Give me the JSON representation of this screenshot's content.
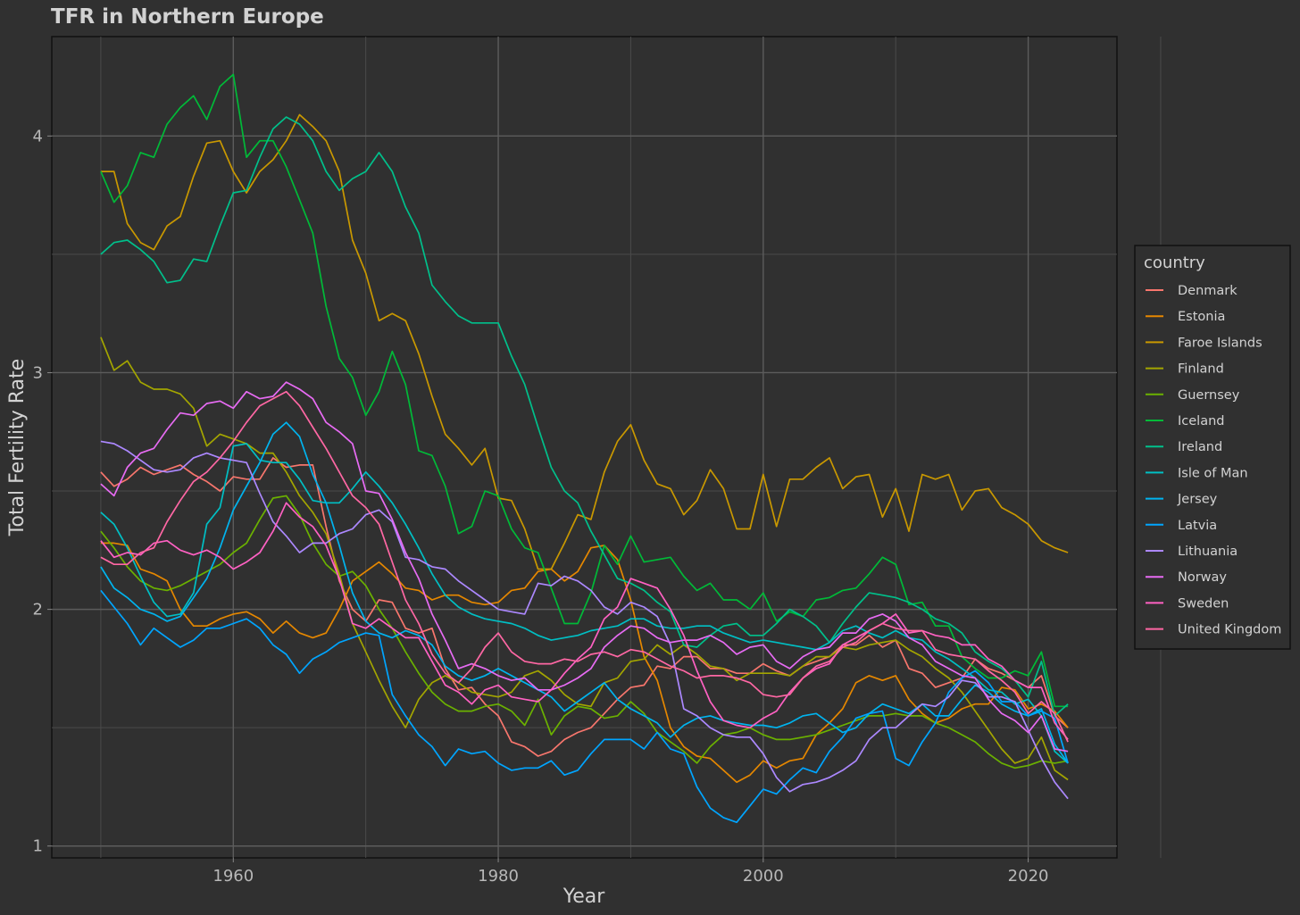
{
  "chart_data": {
    "type": "line",
    "title": "TFR in Northern Europe",
    "xlabel": "Year",
    "ylabel": "Total Fertility Rate",
    "legend_title": "country",
    "legend_position": "right",
    "grid": true,
    "xlim": [
      1946.3,
      2026.7
    ],
    "ylim": [
      0.95,
      4.42
    ],
    "x_ticks": [
      1960,
      1980,
      2000,
      2020
    ],
    "y_ticks": [
      1,
      2,
      3,
      4
    ],
    "x_start": 1950,
    "series": [
      {
        "name": "Denmark",
        "color": "#F8766D",
        "values": [
          2.58,
          2.52,
          2.55,
          2.6,
          2.57,
          2.59,
          2.61,
          2.57,
          2.54,
          2.5,
          2.56,
          2.55,
          2.55,
          2.64,
          2.6,
          2.61,
          2.61,
          2.35,
          2.12,
          2.0,
          1.95,
          2.04,
          2.03,
          1.92,
          1.9,
          1.92,
          1.75,
          1.66,
          1.67,
          1.6,
          1.55,
          1.44,
          1.42,
          1.38,
          1.4,
          1.45,
          1.48,
          1.5,
          1.56,
          1.62,
          1.67,
          1.68,
          1.76,
          1.75,
          1.8,
          1.8,
          1.75,
          1.75,
          1.73,
          1.73,
          1.77,
          1.74,
          1.72,
          1.76,
          1.78,
          1.8,
          1.85,
          1.85,
          1.89,
          1.84,
          1.87,
          1.75,
          1.73,
          1.67,
          1.69,
          1.71,
          1.79,
          1.75,
          1.73,
          1.7,
          1.67,
          1.72,
          1.55,
          1.5
        ]
      },
      {
        "name": "Estonia",
        "color": "#E58700",
        "values": [
          2.28,
          2.28,
          2.27,
          2.17,
          2.15,
          2.12,
          2.0,
          1.93,
          1.93,
          1.96,
          1.98,
          1.99,
          1.96,
          1.9,
          1.95,
          1.9,
          1.88,
          1.9,
          2.0,
          2.12,
          2.16,
          2.2,
          2.15,
          2.09,
          2.08,
          2.04,
          2.06,
          2.06,
          2.03,
          2.02,
          2.03,
          2.08,
          2.09,
          2.16,
          2.17,
          2.12,
          2.16,
          2.26,
          2.27,
          2.21,
          2.04,
          1.8,
          1.7,
          1.5,
          1.42,
          1.38,
          1.37,
          1.32,
          1.27,
          1.3,
          1.36,
          1.33,
          1.36,
          1.37,
          1.47,
          1.52,
          1.58,
          1.69,
          1.72,
          1.7,
          1.72,
          1.62,
          1.56,
          1.52,
          1.54,
          1.58,
          1.6,
          1.6,
          1.67,
          1.66,
          1.58,
          1.6,
          1.57,
          1.5
        ]
      },
      {
        "name": "Faroe Islands",
        "color": "#C99800",
        "values": [
          3.85,
          3.85,
          3.63,
          3.55,
          3.52,
          3.62,
          3.66,
          3.83,
          3.97,
          3.98,
          3.85,
          3.76,
          3.85,
          3.9,
          3.98,
          4.09,
          4.04,
          3.98,
          3.85,
          3.56,
          3.42,
          3.22,
          3.25,
          3.22,
          3.08,
          2.9,
          2.74,
          2.68,
          2.61,
          2.68,
          2.47,
          2.46,
          2.34,
          2.17,
          2.17,
          2.28,
          2.4,
          2.38,
          2.58,
          2.71,
          2.78,
          2.63,
          2.53,
          2.51,
          2.4,
          2.46,
          2.59,
          2.51,
          2.34,
          2.34,
          2.57,
          2.35,
          2.55,
          2.55,
          2.6,
          2.64,
          2.51,
          2.56,
          2.57,
          2.39,
          2.51,
          2.33,
          2.57,
          2.55,
          2.57,
          2.42,
          2.5,
          2.51,
          2.43,
          2.4,
          2.36,
          2.29,
          2.26,
          2.24
        ]
      },
      {
        "name": "Finland",
        "color": "#A3A500",
        "values": [
          3.15,
          3.01,
          3.05,
          2.96,
          2.93,
          2.93,
          2.91,
          2.85,
          2.69,
          2.74,
          2.72,
          2.7,
          2.66,
          2.66,
          2.58,
          2.48,
          2.41,
          2.32,
          2.15,
          1.94,
          1.82,
          1.7,
          1.59,
          1.5,
          1.62,
          1.69,
          1.72,
          1.69,
          1.65,
          1.64,
          1.63,
          1.65,
          1.72,
          1.74,
          1.7,
          1.64,
          1.6,
          1.59,
          1.69,
          1.71,
          1.78,
          1.79,
          1.85,
          1.81,
          1.85,
          1.81,
          1.76,
          1.75,
          1.7,
          1.73,
          1.73,
          1.73,
          1.72,
          1.76,
          1.8,
          1.8,
          1.84,
          1.83,
          1.85,
          1.86,
          1.87,
          1.83,
          1.8,
          1.75,
          1.71,
          1.65,
          1.57,
          1.49,
          1.41,
          1.35,
          1.37,
          1.46,
          1.32,
          1.28
        ]
      },
      {
        "name": "Guernsey",
        "color": "#6BB100",
        "values": [
          2.33,
          2.26,
          2.18,
          2.12,
          2.09,
          2.08,
          2.1,
          2.13,
          2.16,
          2.19,
          2.24,
          2.28,
          2.38,
          2.47,
          2.48,
          2.4,
          2.28,
          2.19,
          2.14,
          2.16,
          2.1,
          2.0,
          1.92,
          1.82,
          1.73,
          1.65,
          1.6,
          1.57,
          1.57,
          1.59,
          1.6,
          1.57,
          1.51,
          1.62,
          1.47,
          1.55,
          1.59,
          1.58,
          1.54,
          1.55,
          1.61,
          1.56,
          1.48,
          1.44,
          1.4,
          1.35,
          1.42,
          1.47,
          1.48,
          1.5,
          1.47,
          1.45,
          1.45,
          1.46,
          1.47,
          1.49,
          1.51,
          1.53,
          1.55,
          1.55,
          1.56,
          1.55,
          1.55,
          1.52,
          1.5,
          1.47,
          1.44,
          1.39,
          1.35,
          1.33,
          1.34,
          1.36,
          1.35,
          1.36
        ]
      },
      {
        "name": "Iceland",
        "color": "#00BA38",
        "values": [
          3.85,
          3.72,
          3.79,
          3.93,
          3.91,
          4.05,
          4.12,
          4.17,
          4.07,
          4.21,
          4.26,
          3.91,
          3.98,
          3.98,
          3.87,
          3.73,
          3.59,
          3.28,
          3.06,
          2.98,
          2.82,
          2.92,
          3.09,
          2.95,
          2.67,
          2.65,
          2.52,
          2.32,
          2.35,
          2.5,
          2.48,
          2.34,
          2.26,
          2.24,
          2.09,
          1.94,
          1.94,
          2.07,
          2.27,
          2.19,
          2.31,
          2.2,
          2.21,
          2.22,
          2.14,
          2.08,
          2.11,
          2.04,
          2.04,
          2.0,
          2.07,
          1.95,
          1.99,
          1.97,
          2.04,
          2.05,
          2.08,
          2.09,
          2.15,
          2.22,
          2.19,
          2.02,
          2.03,
          1.93,
          1.93,
          1.8,
          1.75,
          1.71,
          1.71,
          1.74,
          1.72,
          1.82,
          1.59,
          1.59
        ]
      },
      {
        "name": "Ireland",
        "color": "#00C08B",
        "values": [
          3.5,
          3.55,
          3.56,
          3.52,
          3.47,
          3.38,
          3.39,
          3.48,
          3.47,
          3.62,
          3.76,
          3.77,
          3.91,
          4.03,
          4.08,
          4.05,
          3.98,
          3.85,
          3.77,
          3.82,
          3.85,
          3.93,
          3.85,
          3.7,
          3.59,
          3.37,
          3.3,
          3.24,
          3.21,
          3.21,
          3.21,
          3.07,
          2.95,
          2.77,
          2.6,
          2.5,
          2.45,
          2.33,
          2.23,
          2.13,
          2.11,
          2.08,
          2.03,
          1.99,
          1.85,
          1.84,
          1.89,
          1.93,
          1.94,
          1.89,
          1.89,
          1.94,
          2.0,
          1.97,
          1.93,
          1.86,
          1.94,
          2.01,
          2.07,
          2.06,
          2.05,
          2.03,
          2.0,
          1.96,
          1.94,
          1.9,
          1.82,
          1.78,
          1.75,
          1.7,
          1.63,
          1.78,
          1.55,
          1.6
        ]
      },
      {
        "name": "Isle of Man",
        "color": "#00BFC4",
        "values": [
          2.41,
          2.36,
          2.26,
          2.14,
          2.03,
          1.97,
          1.98,
          2.07,
          2.36,
          2.43,
          2.69,
          2.7,
          2.63,
          2.62,
          2.62,
          2.55,
          2.46,
          2.45,
          2.45,
          2.51,
          2.58,
          2.52,
          2.45,
          2.36,
          2.26,
          2.15,
          2.06,
          2.01,
          1.98,
          1.96,
          1.95,
          1.94,
          1.92,
          1.89,
          1.87,
          1.88,
          1.89,
          1.91,
          1.92,
          1.93,
          1.96,
          1.96,
          1.93,
          1.92,
          1.92,
          1.93,
          1.93,
          1.9,
          1.88,
          1.86,
          1.87,
          1.86,
          1.85,
          1.84,
          1.83,
          1.86,
          1.91,
          1.93,
          1.9,
          1.88,
          1.91,
          1.88,
          1.87,
          1.82,
          1.79,
          1.75,
          1.71,
          1.66,
          1.65,
          1.6,
          1.62,
          1.55,
          1.4,
          1.35
        ]
      },
      {
        "name": "Jersey",
        "color": "#00B4EF",
        "values": [
          2.18,
          2.09,
          2.05,
          2.0,
          1.98,
          1.95,
          1.97,
          2.05,
          2.13,
          2.26,
          2.42,
          2.52,
          2.62,
          2.74,
          2.79,
          2.73,
          2.57,
          2.45,
          2.27,
          2.07,
          1.95,
          1.9,
          1.88,
          1.91,
          1.89,
          1.85,
          1.76,
          1.72,
          1.7,
          1.72,
          1.75,
          1.72,
          1.69,
          1.66,
          1.63,
          1.57,
          1.61,
          1.65,
          1.69,
          1.62,
          1.58,
          1.55,
          1.52,
          1.46,
          1.51,
          1.54,
          1.55,
          1.53,
          1.52,
          1.51,
          1.51,
          1.5,
          1.52,
          1.55,
          1.56,
          1.52,
          1.48,
          1.5,
          1.56,
          1.6,
          1.58,
          1.56,
          1.6,
          1.55,
          1.55,
          1.62,
          1.68,
          1.65,
          1.6,
          1.57,
          1.55,
          1.58,
          1.43,
          1.35
        ]
      },
      {
        "name": "Latvia",
        "color": "#00A5FF",
        "values": [
          2.08,
          2.01,
          1.94,
          1.85,
          1.92,
          1.88,
          1.84,
          1.87,
          1.92,
          1.92,
          1.94,
          1.96,
          1.92,
          1.85,
          1.81,
          1.73,
          1.79,
          1.82,
          1.86,
          1.88,
          1.9,
          1.89,
          1.64,
          1.55,
          1.47,
          1.42,
          1.34,
          1.41,
          1.39,
          1.4,
          1.35,
          1.32,
          1.33,
          1.33,
          1.36,
          1.3,
          1.32,
          1.39,
          1.45,
          1.45,
          1.45,
          1.41,
          1.48,
          1.41,
          1.39,
          1.25,
          1.16,
          1.12,
          1.1,
          1.17,
          1.24,
          1.22,
          1.28,
          1.33,
          1.31,
          1.4,
          1.46,
          1.54,
          1.56,
          1.57,
          1.37,
          1.34,
          1.44,
          1.52,
          1.65,
          1.71,
          1.74,
          1.69,
          1.61,
          1.61,
          1.55,
          1.57,
          1.54,
          1.35
        ]
      },
      {
        "name": "Lithuania",
        "color": "#AC88FF",
        "values": [
          2.71,
          2.7,
          2.67,
          2.63,
          2.59,
          2.58,
          2.59,
          2.64,
          2.66,
          2.64,
          2.63,
          2.62,
          2.49,
          2.37,
          2.31,
          2.24,
          2.28,
          2.28,
          2.32,
          2.34,
          2.4,
          2.42,
          2.37,
          2.22,
          2.21,
          2.18,
          2.17,
          2.12,
          2.08,
          2.04,
          2.0,
          1.99,
          1.98,
          2.11,
          2.1,
          2.14,
          2.12,
          2.08,
          2.01,
          1.98,
          2.03,
          2.01,
          1.97,
          1.85,
          1.58,
          1.55,
          1.5,
          1.47,
          1.46,
          1.46,
          1.39,
          1.29,
          1.23,
          1.26,
          1.27,
          1.29,
          1.32,
          1.36,
          1.45,
          1.5,
          1.5,
          1.55,
          1.6,
          1.59,
          1.63,
          1.7,
          1.69,
          1.63,
          1.63,
          1.61,
          1.49,
          1.37,
          1.27,
          1.2
        ]
      },
      {
        "name": "Norway",
        "color": "#E76BF3",
        "values": [
          2.53,
          2.48,
          2.6,
          2.66,
          2.68,
          2.76,
          2.83,
          2.82,
          2.87,
          2.88,
          2.85,
          2.92,
          2.89,
          2.9,
          2.96,
          2.93,
          2.89,
          2.79,
          2.75,
          2.7,
          2.5,
          2.49,
          2.38,
          2.24,
          2.13,
          1.98,
          1.87,
          1.75,
          1.77,
          1.75,
          1.72,
          1.7,
          1.71,
          1.66,
          1.66,
          1.68,
          1.71,
          1.75,
          1.84,
          1.89,
          1.93,
          1.92,
          1.88,
          1.86,
          1.87,
          1.87,
          1.89,
          1.86,
          1.81,
          1.84,
          1.85,
          1.78,
          1.75,
          1.8,
          1.83,
          1.84,
          1.9,
          1.9,
          1.96,
          1.98,
          1.95,
          1.88,
          1.85,
          1.78,
          1.75,
          1.72,
          1.71,
          1.62,
          1.56,
          1.53,
          1.48,
          1.55,
          1.41,
          1.4
        ]
      },
      {
        "name": "Sweden",
        "color": "#FF61C3",
        "values": [
          2.29,
          2.22,
          2.24,
          2.23,
          2.28,
          2.29,
          2.25,
          2.23,
          2.25,
          2.22,
          2.17,
          2.2,
          2.24,
          2.33,
          2.45,
          2.39,
          2.35,
          2.27,
          2.13,
          1.94,
          1.92,
          1.96,
          1.92,
          1.88,
          1.88,
          1.78,
          1.68,
          1.65,
          1.6,
          1.66,
          1.68,
          1.63,
          1.62,
          1.61,
          1.66,
          1.73,
          1.79,
          1.84,
          1.96,
          2.01,
          2.13,
          2.11,
          2.09,
          2.0,
          1.89,
          1.74,
          1.61,
          1.53,
          1.51,
          1.5,
          1.54,
          1.57,
          1.65,
          1.71,
          1.75,
          1.77,
          1.85,
          1.88,
          1.91,
          1.94,
          1.98,
          1.9,
          1.91,
          1.89,
          1.88,
          1.85,
          1.85,
          1.79,
          1.76,
          1.7,
          1.67,
          1.67,
          1.52,
          1.45
        ]
      },
      {
        "name": "United Kingdom",
        "color": "#FF67A4",
        "values": [
          2.22,
          2.19,
          2.19,
          2.24,
          2.26,
          2.37,
          2.46,
          2.54,
          2.58,
          2.64,
          2.71,
          2.79,
          2.86,
          2.89,
          2.92,
          2.86,
          2.77,
          2.68,
          2.58,
          2.48,
          2.43,
          2.36,
          2.2,
          2.04,
          1.94,
          1.81,
          1.73,
          1.69,
          1.75,
          1.84,
          1.9,
          1.82,
          1.78,
          1.77,
          1.77,
          1.79,
          1.78,
          1.81,
          1.82,
          1.8,
          1.83,
          1.82,
          1.79,
          1.76,
          1.74,
          1.71,
          1.72,
          1.72,
          1.71,
          1.69,
          1.64,
          1.63,
          1.64,
          1.71,
          1.76,
          1.78,
          1.84,
          1.86,
          1.91,
          1.94,
          1.92,
          1.91,
          1.91,
          1.83,
          1.81,
          1.8,
          1.79,
          1.74,
          1.7,
          1.65,
          1.56,
          1.61,
          1.56,
          1.44
        ]
      }
    ]
  }
}
